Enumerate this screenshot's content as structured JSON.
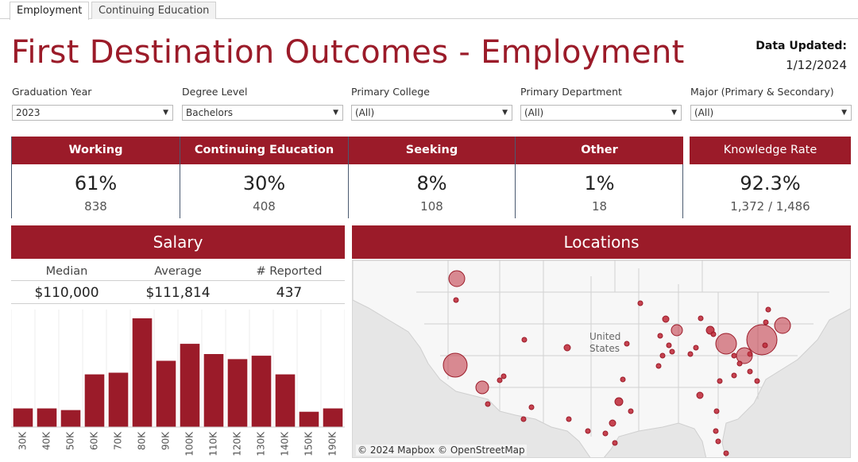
{
  "tabs": [
    "Employment",
    "Continuing Education"
  ],
  "title": "First Destination Outcomes - Employment",
  "data_updated": {
    "label": "Data Updated:",
    "date": "1/12/2024"
  },
  "filters": [
    {
      "label": "Graduation Year",
      "value": "2023"
    },
    {
      "label": "Degree Level",
      "value": "Bachelors"
    },
    {
      "label": "Primary College",
      "value": "(All)"
    },
    {
      "label": "Primary Department",
      "value": "(All)"
    },
    {
      "label": "Major (Primary & Secondary)",
      "value": "(All)"
    }
  ],
  "kpis": [
    {
      "label": "Working",
      "percent": "61%",
      "count": "838"
    },
    {
      "label": "Continuing Education",
      "percent": "30%",
      "count": "408"
    },
    {
      "label": "Seeking",
      "percent": "8%",
      "count": "108"
    },
    {
      "label": "Other",
      "percent": "1%",
      "count": "18"
    }
  ],
  "knowledge_rate": {
    "label": "Knowledge Rate",
    "percent": "92.3%",
    "ratio": "1,372 / 1,486"
  },
  "salary": {
    "header": "Salary",
    "columns": [
      "Median",
      "Average",
      "# Reported"
    ],
    "values": [
      "$110,000",
      "$111,814",
      "437"
    ]
  },
  "locations": {
    "header": "Locations",
    "country_label": "United States",
    "attribution": "© 2024 Mapbox  © OpenStreetMap"
  },
  "colors": {
    "accent": "#9b1b29",
    "map_dot": "#c0303e"
  },
  "chart_data": {
    "type": "bar",
    "categories": [
      "30K",
      "40K",
      "50K",
      "60K",
      "70K",
      "80K",
      "90K",
      "100K",
      "110K",
      "120K",
      "130K",
      "140K",
      "150K",
      "190K"
    ],
    "values": [
      11,
      11,
      10,
      31,
      32,
      64,
      39,
      49,
      43,
      40,
      42,
      31,
      9,
      11
    ],
    "title": "",
    "xlabel": "",
    "ylabel": ""
  }
}
